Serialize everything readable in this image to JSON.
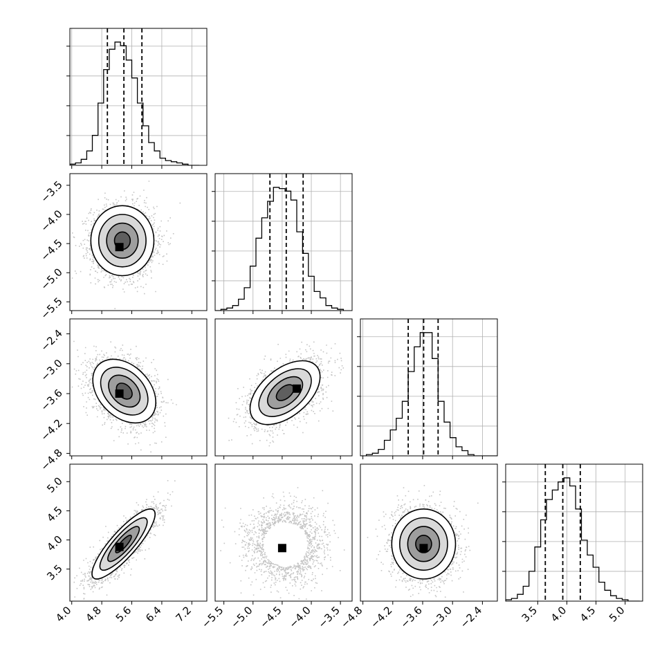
{
  "chart_data": {
    "type": "corner",
    "parameters": [
      {
        "range": [
          3.95,
          7.6
        ],
        "ticks": [
          4.0,
          4.8,
          5.6,
          6.4,
          7.2
        ],
        "tick_labels": [
          "4.0",
          "4.8",
          "5.6",
          "6.4",
          "7.2"
        ],
        "quantiles": [
          4.95,
          5.39,
          5.87
        ],
        "hist_bins": [
          3.95,
          4.1,
          4.25,
          4.4,
          4.55,
          4.7,
          4.85,
          5.0,
          5.15,
          5.3,
          5.45,
          5.6,
          5.75,
          5.9,
          6.05,
          6.2,
          6.35,
          6.5,
          6.65,
          6.8,
          6.95,
          7.1,
          7.25,
          7.4
        ],
        "hist_counts": [
          1,
          2,
          5,
          12,
          25,
          52,
          80,
          97,
          103,
          100,
          88,
          73,
          52,
          33,
          19,
          12,
          6,
          4,
          3,
          2,
          1,
          0,
          0
        ]
      },
      {
        "range": [
          -5.65,
          -3.3
        ],
        "ticks": [
          -5.5,
          -5.0,
          -4.5,
          -4.0,
          -3.5
        ],
        "tick_labels": [
          "−5.5",
          "−5.0",
          "−4.5",
          "−4.0",
          "−3.5"
        ],
        "quantiles": [
          -4.71,
          -4.43,
          -4.14
        ],
        "hist_bins": [
          -5.65,
          -5.55,
          -5.45,
          -5.35,
          -5.25,
          -5.15,
          -5.05,
          -4.95,
          -4.85,
          -4.75,
          -4.65,
          -4.55,
          -4.45,
          -4.35,
          -4.25,
          -4.15,
          -4.05,
          -3.95,
          -3.85,
          -3.75,
          -3.65,
          -3.55,
          -3.45
        ],
        "hist_counts": [
          0,
          1,
          2,
          4,
          9,
          18,
          35,
          57,
          73,
          86,
          97,
          96,
          94,
          87,
          62,
          45,
          27,
          15,
          10,
          4,
          2,
          1
        ]
      },
      {
        "range": [
          -4.85,
          -2.1
        ],
        "ticks": [
          -4.8,
          -4.2,
          -3.6,
          -3.0,
          -2.4
        ],
        "tick_labels": [
          "−4.8",
          "−4.2",
          "−3.6",
          "−3.0",
          "−2.4"
        ],
        "quantiles": [
          -3.89,
          -3.58,
          -3.29
        ],
        "hist_bins": [
          -4.85,
          -4.73,
          -4.61,
          -4.49,
          -4.37,
          -4.25,
          -4.13,
          -4.01,
          -3.89,
          -3.77,
          -3.65,
          -3.53,
          -3.41,
          -3.29,
          -3.17,
          -3.05,
          -2.93,
          -2.81,
          -2.69,
          -2.57,
          -2.45,
          -2.33,
          -2.21,
          -2.1
        ],
        "hist_counts": [
          0,
          1,
          2,
          5,
          12,
          20,
          29,
          42,
          65,
          84,
          95,
          95,
          75,
          42,
          26,
          14,
          7,
          4,
          1,
          0,
          0,
          0,
          0
        ]
      },
      {
        "range": [
          2.95,
          5.3
        ],
        "ticks": [
          3.5,
          4.0,
          4.5,
          5.0
        ],
        "tick_labels": [
          "3.5",
          "4.0",
          "4.5",
          "5.0"
        ],
        "quantiles": [
          3.63,
          3.93,
          4.23
        ],
        "hist_bins": [
          2.95,
          3.05,
          3.15,
          3.25,
          3.35,
          3.45,
          3.55,
          3.65,
          3.75,
          3.85,
          3.95,
          4.05,
          4.15,
          4.25,
          4.35,
          4.45,
          4.55,
          4.65,
          4.75,
          4.85,
          4.95,
          5.05,
          5.15,
          5.25
        ],
        "hist_counts": [
          1,
          2,
          5,
          11,
          22,
          40,
          60,
          75,
          82,
          88,
          91,
          85,
          68,
          45,
          34,
          25,
          14,
          8,
          4,
          2,
          1,
          0,
          0
        ]
      }
    ],
    "pairs": [
      {
        "x_index": 0,
        "y_index": 1,
        "mean": [
          5.35,
          -4.45
        ],
        "sigma": [
          0.42,
          0.3
        ],
        "rho": 0.0,
        "peak": [
          5.27,
          -4.56
        ]
      },
      {
        "x_index": 0,
        "y_index": 2,
        "mean": [
          5.4,
          -3.55
        ],
        "sigma": [
          0.42,
          0.32
        ],
        "rho": -0.35,
        "peak": [
          5.27,
          -3.6
        ]
      },
      {
        "x_index": 1,
        "y_index": 2,
        "mean": [
          -4.45,
          -3.58
        ],
        "sigma": [
          0.3,
          0.32
        ],
        "rho": 0.5,
        "peak": [
          -4.25,
          -3.5
        ]
      },
      {
        "x_index": 0,
        "y_index": 3,
        "mean": [
          5.38,
          3.93
        ],
        "sigma": [
          0.42,
          0.3
        ],
        "rho": 0.85,
        "peak": [
          5.27,
          3.88
        ]
      },
      {
        "x_index": 1,
        "y_index": 3,
        "mean": [
          -4.45,
          3.93
        ],
        "sigma": [
          0.3,
          0.3
        ],
        "rho": 0.0,
        "peak": [
          -4.5,
          3.86
        ]
      },
      {
        "x_index": 2,
        "y_index": 3,
        "mean": [
          -3.58,
          3.93
        ],
        "sigma": [
          0.32,
          0.3
        ],
        "rho": 0.0,
        "peak": [
          -3.58,
          3.86
        ]
      }
    ],
    "contour_levels_sigma": [
      0.5,
      1.0,
      1.5,
      2.0
    ],
    "grid": true,
    "colors": {
      "ink": "#000000",
      "grid": "#b0b0b0",
      "scatter": "#555555",
      "background": "#ffffff"
    }
  }
}
